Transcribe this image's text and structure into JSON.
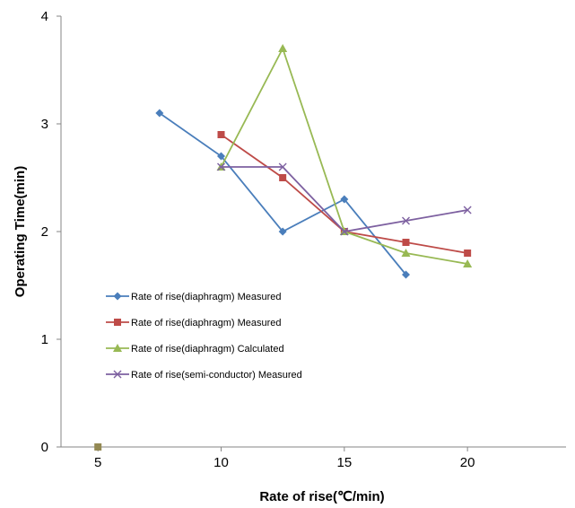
{
  "chart_data": {
    "type": "line",
    "title": "",
    "xlabel": "Rate of rise(℃/min)",
    "ylabel": "Operating Time(min)",
    "xlim": [
      3.5,
      24
    ],
    "ylim": [
      0,
      4
    ],
    "xticks": [
      5,
      10,
      15,
      20
    ],
    "yticks": [
      0,
      1,
      2,
      3,
      4
    ],
    "grid": false,
    "legend_position": "lower-left inside plot",
    "series": [
      {
        "name": "Rate of rise(diaphragm)  Measured",
        "color": "#4a7ebb",
        "marker": "diamond",
        "x": [
          7.5,
          10,
          12.5,
          15,
          17.5
        ],
        "y": [
          3.1,
          2.7,
          2.0,
          2.3,
          1.6
        ]
      },
      {
        "name": "Rate of rise(diaphragm)  Measured",
        "color": "#be4b48",
        "marker": "square",
        "x": [
          10,
          12.5,
          15,
          17.5,
          20
        ],
        "y": [
          2.9,
          2.5,
          2.0,
          1.9,
          1.8
        ]
      },
      {
        "name": "Rate of rise(diaphragm)  Calculated",
        "color": "#98b954",
        "marker": "triangle",
        "x": [
          10,
          12.5,
          15,
          17.5,
          20
        ],
        "y": [
          2.6,
          3.7,
          2.0,
          1.8,
          1.7
        ]
      },
      {
        "name": "Rate of rise(semi-conductor)   Measured",
        "color": "#7d60a0",
        "marker": "x",
        "x": [
          10,
          12.5,
          15,
          17.5,
          20
        ],
        "y": [
          2.6,
          2.6,
          2.0,
          2.1,
          2.2
        ]
      }
    ],
    "extra_points": [
      {
        "x": 5,
        "y": 0,
        "color": "#938953",
        "marker": "square"
      }
    ]
  }
}
